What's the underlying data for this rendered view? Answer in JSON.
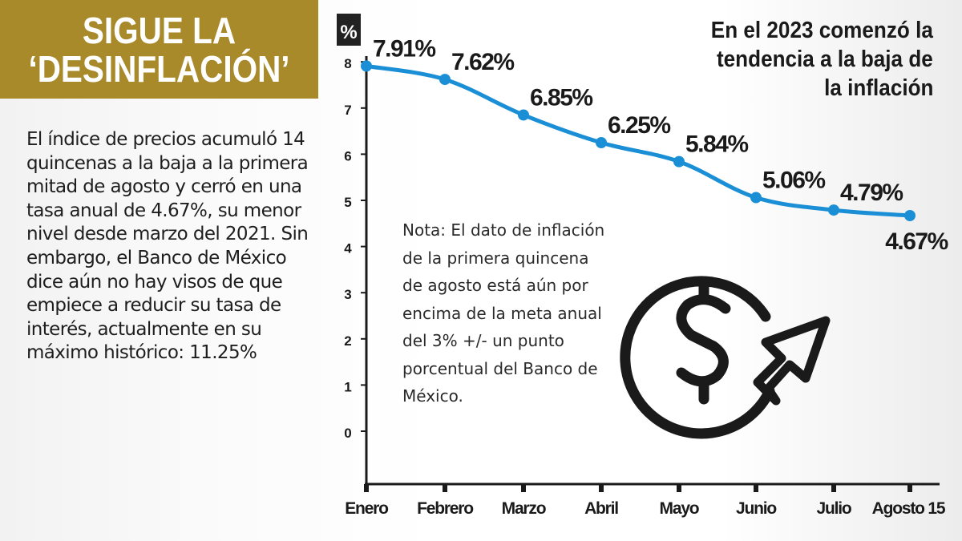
{
  "header": {
    "line1": "SIGUE LA",
    "line2": "‘DESINFLACIÓN’",
    "color": "#a88a2a"
  },
  "body_text": "El índice de precios acumuló 14 quincenas a la baja a la primera mitad de agosto y cerró en una tasa anual de 4.67%, su menor nivel desde marzo del 2021. Sin embargo, el Banco de México dice aún no hay visos de que empiece a reducir su tasa de interés, actualmente en su máximo histórico: 11.25%",
  "note": "Nota: El dato de inflación de la primera quincena de agosto está aún por encima de la meta anual del 3% +/- un punto porcentual del Banco de México.",
  "icon": "dollar-circle-arrow-icon",
  "chart_data": {
    "type": "line",
    "title": "En el 2023 comenzó la tendencia a la baja de la inflación",
    "title_lines": [
      "En el 2023 comenzó la",
      "tendencia a la baja de",
      "la inflación"
    ],
    "ylabel": "%",
    "xlabel": "",
    "categories": [
      "Enero",
      "Febrero",
      "Marzo",
      "Abril",
      "Mayo",
      "Junio",
      "Julio",
      "Agosto 15"
    ],
    "values": [
      7.91,
      7.62,
      6.85,
      6.25,
      5.84,
      5.06,
      4.79,
      4.67
    ],
    "data_labels": [
      "7.91%",
      "7.62%",
      "6.85%",
      "6.25%",
      "5.84%",
      "5.06%",
      "4.79%",
      "4.67%"
    ],
    "yticks": [
      "0",
      "1",
      "2",
      "3",
      "4",
      "5",
      "6",
      "7",
      "8"
    ],
    "ylim": [
      0,
      8
    ],
    "grid": false,
    "legend": "none",
    "line_color": "#1a8fd6"
  }
}
